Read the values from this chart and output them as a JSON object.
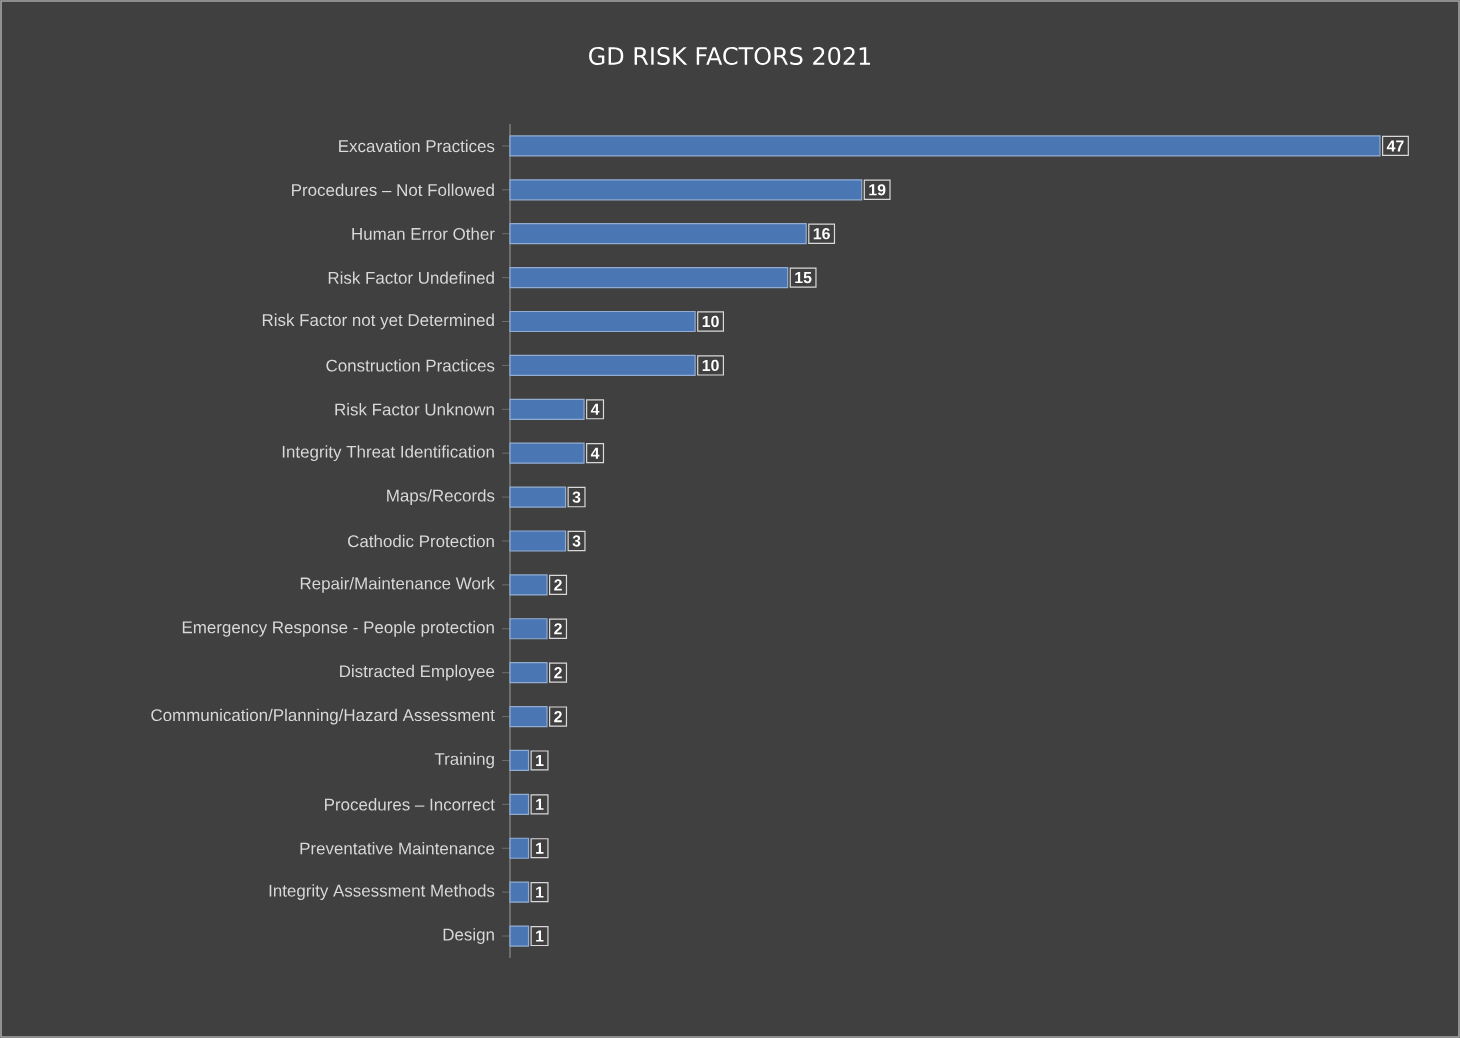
{
  "chart_data": {
    "type": "bar",
    "orientation": "horizontal",
    "title": "GD RISK FACTORS 2021",
    "categories": [
      "Excavation Practices",
      "Procedures – Not Followed",
      "Human Error Other",
      "Risk Factor Undefined",
      "Risk Factor not yet Determined",
      "Construction Practices",
      "Risk Factor Unknown",
      "Integrity Threat Identification",
      "Maps/Records",
      "Cathodic Protection",
      "Repair/Maintenance Work",
      "Emergency Response - People protection",
      "Distracted Employee",
      "Communication/Planning/Hazard Assessment",
      "Training",
      "Procedures – Incorrect",
      "Preventative Maintenance",
      "Integrity Assessment Methods",
      "Design"
    ],
    "values": [
      47,
      19,
      16,
      15,
      10,
      10,
      4,
      4,
      3,
      3,
      2,
      2,
      2,
      2,
      1,
      1,
      1,
      1,
      1
    ],
    "color": "#4a76b4",
    "data_labels": true
  }
}
